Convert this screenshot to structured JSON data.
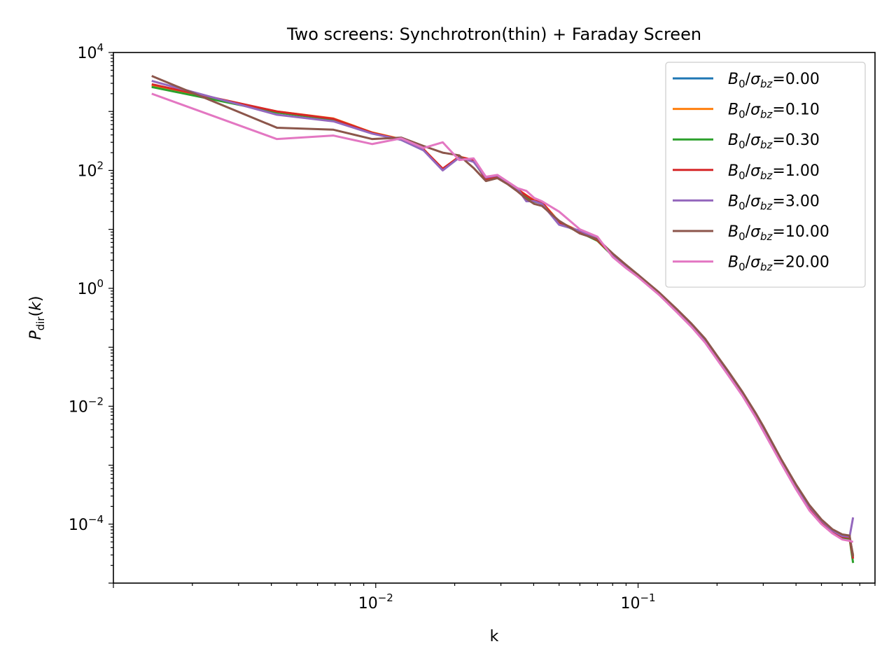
{
  "chart_data": {
    "type": "line",
    "title": "Two screens: Synchrotron(thin) + Faraday Screen",
    "xlabel": "k",
    "ylabel": "P_dir(k)",
    "xscale": "log",
    "yscale": "log",
    "xlim": [
      0.001,
      0.8
    ],
    "ylim": [
      1e-05,
      10000
    ],
    "grid": false,
    "legend_position": "upper right",
    "x_ticks": [
      {
        "value": 0.01,
        "base": "10",
        "exp": "−2"
      },
      {
        "value": 0.1,
        "base": "10",
        "exp": "−1"
      }
    ],
    "y_ticks": [
      {
        "value": 10000,
        "base": "10",
        "exp": "4"
      },
      {
        "value": 100,
        "base": "10",
        "exp": "2"
      },
      {
        "value": 1,
        "base": "10",
        "exp": "0"
      },
      {
        "value": 0.01,
        "base": "10",
        "exp": "−2"
      },
      {
        "value": 0.0001,
        "base": "10",
        "exp": "−4"
      }
    ],
    "x": [
      0.0014,
      0.0042,
      0.0069,
      0.0097,
      0.0125,
      0.0152,
      0.018,
      0.0208,
      0.0236,
      0.0263,
      0.0291,
      0.0319,
      0.0347,
      0.0375,
      0.0402,
      0.043,
      0.05,
      0.06,
      0.07,
      0.08,
      0.09,
      0.1,
      0.12,
      0.14,
      0.16,
      0.18,
      0.2,
      0.22,
      0.25,
      0.28,
      0.3,
      0.35,
      0.4,
      0.45,
      0.5,
      0.55,
      0.6,
      0.64,
      0.66
    ],
    "series": [
      {
        "name": "B0/σbz=0.00",
        "color": "#1f77b4",
        "values": [
          2700.0,
          980,
          740,
          430,
          330,
          220,
          105,
          170,
          145,
          72,
          78,
          60,
          47,
          37,
          30,
          28,
          13,
          9,
          6.5,
          3.6,
          2.3,
          1.6,
          0.82,
          0.42,
          0.23,
          0.13,
          0.066,
          0.036,
          0.016,
          0.0071,
          0.0041,
          0.0012,
          0.00042,
          0.00019,
          0.00011,
          7.5e-05,
          6e-05,
          5.8e-05,
          3e-05
        ]
      },
      {
        "name": "B0/σbz=0.10",
        "color": "#ff7f0e",
        "values": [
          2800.0,
          1000,
          760,
          440,
          340,
          230,
          106,
          172,
          148,
          74,
          80,
          62,
          48,
          38,
          31,
          29,
          13.5,
          9.2,
          6.6,
          3.7,
          2.35,
          1.65,
          0.83,
          0.43,
          0.235,
          0.132,
          0.067,
          0.037,
          0.0162,
          0.0072,
          0.0042,
          0.00122,
          0.00043,
          0.000195,
          0.000112,
          7.7e-05,
          6.2e-05,
          6e-05,
          2.9e-05
        ]
      },
      {
        "name": "B0/σbz=0.30",
        "color": "#2ca02c",
        "values": [
          2600.0,
          960,
          730,
          425,
          332,
          225,
          104,
          168,
          144,
          71,
          77,
          59,
          46,
          36,
          29.5,
          27.5,
          12.8,
          8.9,
          6.4,
          3.55,
          2.28,
          1.58,
          0.81,
          0.415,
          0.228,
          0.128,
          0.065,
          0.0355,
          0.0158,
          0.007,
          0.004,
          0.00118,
          0.000415,
          0.000188,
          0.000108,
          7.4e-05,
          5.9e-05,
          5.7e-05,
          2.2e-05
        ]
      },
      {
        "name": "B0/σbz=1.00",
        "color": "#d62728",
        "values": [
          2900.0,
          1000,
          750,
          435,
          335,
          228,
          107,
          170,
          150,
          70,
          79,
          61,
          47.5,
          37.5,
          30.5,
          28.5,
          13.2,
          9.1,
          6.55,
          3.65,
          2.32,
          1.62,
          0.825,
          0.425,
          0.232,
          0.131,
          0.0665,
          0.0365,
          0.016,
          0.0071,
          0.00415,
          0.0012,
          0.000425,
          0.000192,
          0.00011,
          7.6e-05,
          6.1e-05,
          5.9e-05,
          2.6e-05
        ]
      },
      {
        "name": "B0/σbz=3.00",
        "color": "#9467bd",
        "values": [
          3300.0,
          880,
          680,
          420,
          330,
          220,
          100,
          165,
          140,
          76,
          82,
          63,
          49,
          30,
          30,
          27,
          12,
          9.5,
          7.0,
          3.8,
          2.4,
          1.7,
          0.84,
          0.44,
          0.24,
          0.135,
          0.069,
          0.038,
          0.0165,
          0.0073,
          0.0043,
          0.00125,
          0.00044,
          0.0002,
          0.000115,
          7.8e-05,
          6.3e-05,
          6.1e-05,
          0.00013
        ]
      },
      {
        "name": "B0/σbz=10.00",
        "color": "#8c564b",
        "values": [
          4000.0,
          530,
          490,
          340,
          360,
          260,
          200,
          180,
          110,
          66,
          74,
          58,
          44,
          33,
          27,
          25,
          14,
          8.5,
          6.8,
          3.9,
          2.5,
          1.7,
          0.86,
          0.45,
          0.25,
          0.14,
          0.072,
          0.04,
          0.0175,
          0.0078,
          0.0046,
          0.0013,
          0.00047,
          0.00021,
          0.00012,
          8.2e-05,
          6.7e-05,
          6.4e-05,
          2.8e-05
        ]
      },
      {
        "name": "B0/σbz=20.00",
        "color": "#e377c2",
        "values": [
          2000.0,
          340,
          390,
          280,
          350,
          240,
          300,
          150,
          160,
          78,
          84,
          64,
          50,
          45,
          34,
          30,
          20,
          10,
          7.5,
          3.4,
          2.2,
          1.55,
          0.78,
          0.4,
          0.22,
          0.12,
          0.062,
          0.034,
          0.015,
          0.0066,
          0.0038,
          0.0011,
          0.00039,
          0.00017,
          0.0001,
          7e-05,
          5.5e-05,
          5.2e-05,
          5e-05
        ]
      }
    ]
  }
}
